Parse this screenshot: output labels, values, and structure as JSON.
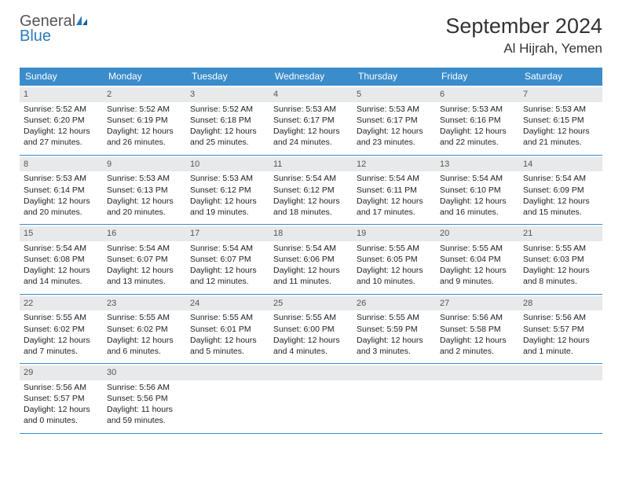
{
  "logo": {
    "text1": "General",
    "text2": "Blue"
  },
  "title": "September 2024",
  "location": "Al Hijrah, Yemen",
  "colors": {
    "header_bg": "#3b8ccb",
    "header_text": "#ffffff",
    "daynum_bg": "#e8e9ea",
    "border": "#3b8ccb",
    "logo_blue": "#2a7bbd"
  },
  "daysOfWeek": [
    "Sunday",
    "Monday",
    "Tuesday",
    "Wednesday",
    "Thursday",
    "Friday",
    "Saturday"
  ],
  "weeks": [
    [
      {
        "n": "1",
        "sr": "Sunrise: 5:52 AM",
        "ss": "Sunset: 6:20 PM",
        "d1": "Daylight: 12 hours",
        "d2": "and 27 minutes."
      },
      {
        "n": "2",
        "sr": "Sunrise: 5:52 AM",
        "ss": "Sunset: 6:19 PM",
        "d1": "Daylight: 12 hours",
        "d2": "and 26 minutes."
      },
      {
        "n": "3",
        "sr": "Sunrise: 5:52 AM",
        "ss": "Sunset: 6:18 PM",
        "d1": "Daylight: 12 hours",
        "d2": "and 25 minutes."
      },
      {
        "n": "4",
        "sr": "Sunrise: 5:53 AM",
        "ss": "Sunset: 6:17 PM",
        "d1": "Daylight: 12 hours",
        "d2": "and 24 minutes."
      },
      {
        "n": "5",
        "sr": "Sunrise: 5:53 AM",
        "ss": "Sunset: 6:17 PM",
        "d1": "Daylight: 12 hours",
        "d2": "and 23 minutes."
      },
      {
        "n": "6",
        "sr": "Sunrise: 5:53 AM",
        "ss": "Sunset: 6:16 PM",
        "d1": "Daylight: 12 hours",
        "d2": "and 22 minutes."
      },
      {
        "n": "7",
        "sr": "Sunrise: 5:53 AM",
        "ss": "Sunset: 6:15 PM",
        "d1": "Daylight: 12 hours",
        "d2": "and 21 minutes."
      }
    ],
    [
      {
        "n": "8",
        "sr": "Sunrise: 5:53 AM",
        "ss": "Sunset: 6:14 PM",
        "d1": "Daylight: 12 hours",
        "d2": "and 20 minutes."
      },
      {
        "n": "9",
        "sr": "Sunrise: 5:53 AM",
        "ss": "Sunset: 6:13 PM",
        "d1": "Daylight: 12 hours",
        "d2": "and 20 minutes."
      },
      {
        "n": "10",
        "sr": "Sunrise: 5:53 AM",
        "ss": "Sunset: 6:12 PM",
        "d1": "Daylight: 12 hours",
        "d2": "and 19 minutes."
      },
      {
        "n": "11",
        "sr": "Sunrise: 5:54 AM",
        "ss": "Sunset: 6:12 PM",
        "d1": "Daylight: 12 hours",
        "d2": "and 18 minutes."
      },
      {
        "n": "12",
        "sr": "Sunrise: 5:54 AM",
        "ss": "Sunset: 6:11 PM",
        "d1": "Daylight: 12 hours",
        "d2": "and 17 minutes."
      },
      {
        "n": "13",
        "sr": "Sunrise: 5:54 AM",
        "ss": "Sunset: 6:10 PM",
        "d1": "Daylight: 12 hours",
        "d2": "and 16 minutes."
      },
      {
        "n": "14",
        "sr": "Sunrise: 5:54 AM",
        "ss": "Sunset: 6:09 PM",
        "d1": "Daylight: 12 hours",
        "d2": "and 15 minutes."
      }
    ],
    [
      {
        "n": "15",
        "sr": "Sunrise: 5:54 AM",
        "ss": "Sunset: 6:08 PM",
        "d1": "Daylight: 12 hours",
        "d2": "and 14 minutes."
      },
      {
        "n": "16",
        "sr": "Sunrise: 5:54 AM",
        "ss": "Sunset: 6:07 PM",
        "d1": "Daylight: 12 hours",
        "d2": "and 13 minutes."
      },
      {
        "n": "17",
        "sr": "Sunrise: 5:54 AM",
        "ss": "Sunset: 6:07 PM",
        "d1": "Daylight: 12 hours",
        "d2": "and 12 minutes."
      },
      {
        "n": "18",
        "sr": "Sunrise: 5:54 AM",
        "ss": "Sunset: 6:06 PM",
        "d1": "Daylight: 12 hours",
        "d2": "and 11 minutes."
      },
      {
        "n": "19",
        "sr": "Sunrise: 5:55 AM",
        "ss": "Sunset: 6:05 PM",
        "d1": "Daylight: 12 hours",
        "d2": "and 10 minutes."
      },
      {
        "n": "20",
        "sr": "Sunrise: 5:55 AM",
        "ss": "Sunset: 6:04 PM",
        "d1": "Daylight: 12 hours",
        "d2": "and 9 minutes."
      },
      {
        "n": "21",
        "sr": "Sunrise: 5:55 AM",
        "ss": "Sunset: 6:03 PM",
        "d1": "Daylight: 12 hours",
        "d2": "and 8 minutes."
      }
    ],
    [
      {
        "n": "22",
        "sr": "Sunrise: 5:55 AM",
        "ss": "Sunset: 6:02 PM",
        "d1": "Daylight: 12 hours",
        "d2": "and 7 minutes."
      },
      {
        "n": "23",
        "sr": "Sunrise: 5:55 AM",
        "ss": "Sunset: 6:02 PM",
        "d1": "Daylight: 12 hours",
        "d2": "and 6 minutes."
      },
      {
        "n": "24",
        "sr": "Sunrise: 5:55 AM",
        "ss": "Sunset: 6:01 PM",
        "d1": "Daylight: 12 hours",
        "d2": "and 5 minutes."
      },
      {
        "n": "25",
        "sr": "Sunrise: 5:55 AM",
        "ss": "Sunset: 6:00 PM",
        "d1": "Daylight: 12 hours",
        "d2": "and 4 minutes."
      },
      {
        "n": "26",
        "sr": "Sunrise: 5:55 AM",
        "ss": "Sunset: 5:59 PM",
        "d1": "Daylight: 12 hours",
        "d2": "and 3 minutes."
      },
      {
        "n": "27",
        "sr": "Sunrise: 5:56 AM",
        "ss": "Sunset: 5:58 PM",
        "d1": "Daylight: 12 hours",
        "d2": "and 2 minutes."
      },
      {
        "n": "28",
        "sr": "Sunrise: 5:56 AM",
        "ss": "Sunset: 5:57 PM",
        "d1": "Daylight: 12 hours",
        "d2": "and 1 minute."
      }
    ],
    [
      {
        "n": "29",
        "sr": "Sunrise: 5:56 AM",
        "ss": "Sunset: 5:57 PM",
        "d1": "Daylight: 12 hours",
        "d2": "and 0 minutes."
      },
      {
        "n": "30",
        "sr": "Sunrise: 5:56 AM",
        "ss": "Sunset: 5:56 PM",
        "d1": "Daylight: 11 hours",
        "d2": "and 59 minutes."
      },
      {
        "empty": true
      },
      {
        "empty": true
      },
      {
        "empty": true
      },
      {
        "empty": true
      },
      {
        "empty": true
      }
    ]
  ]
}
